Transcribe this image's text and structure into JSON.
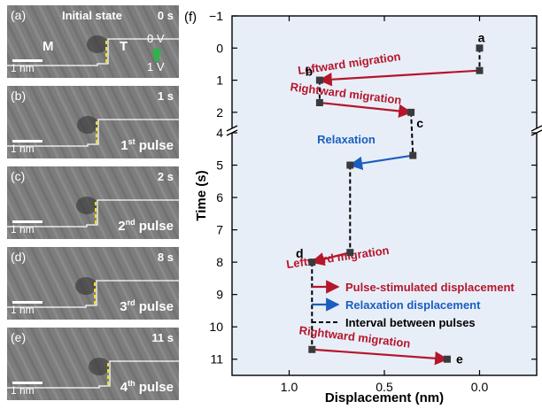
{
  "panels": [
    {
      "label": "(a)",
      "time": "0 s",
      "state": "Initial state",
      "pulse": null,
      "scale": "1 nm",
      "region_left": "M",
      "region_right": "T",
      "bias_top": "0 V",
      "bias_bottom": "1 V"
    },
    {
      "label": "(b)",
      "time": "1 s",
      "pulse": {
        "num": "1",
        "sup": "st",
        "word": "pulse"
      },
      "scale": "1 nm"
    },
    {
      "label": "(c)",
      "time": "2 s",
      "pulse": {
        "num": "2",
        "sup": "nd",
        "word": "pulse"
      },
      "scale": "1 nm"
    },
    {
      "label": "(d)",
      "time": "8 s",
      "pulse": {
        "num": "3",
        "sup": "rd",
        "word": "pulse"
      },
      "scale": "1 nm"
    },
    {
      "label": "(e)",
      "time": "11 s",
      "pulse": {
        "num": "4",
        "sup": "th",
        "word": "pulse"
      },
      "scale": "1 nm"
    }
  ],
  "colors": {
    "pulse": "#b5162b",
    "relax": "#1a5fbf",
    "interval": "#000000",
    "plot_bg": "#e8eef8",
    "marker": "#3a3a3a",
    "arrow_bias": "#2db34a",
    "dashed_edge": "#f2e01a"
  },
  "chart_data": {
    "panel_label": "(f)",
    "type": "scatter",
    "xlabel": "Displacement (nm)",
    "ylabel": "Time (s)",
    "x_reversed": true,
    "xlim": [
      1.3,
      -0.3
    ],
    "x_ticks": [
      1.0,
      0.5,
      0.0
    ],
    "x_tick_labels": [
      "1.0",
      "0.5",
      "0.0"
    ],
    "y_axis_break": {
      "between": 2.5,
      "and": 4
    },
    "y_upper_segment": {
      "range": [
        -1,
        2.5
      ],
      "ticks": [
        -1,
        0,
        1,
        2
      ],
      "tick_labels": [
        "−1",
        "0",
        "1",
        "2"
      ]
    },
    "y_lower_segment": {
      "range": [
        4,
        11.5
      ],
      "ticks": [
        4,
        5,
        6,
        7,
        8,
        9,
        10,
        11
      ],
      "tick_labels": [
        "4",
        "5",
        "6",
        "7",
        "8",
        "9",
        "10",
        "11"
      ]
    },
    "points": [
      {
        "x": 0.0,
        "y": 0.0
      },
      {
        "x": 0.0,
        "y": 0.7
      },
      {
        "x": 0.84,
        "y": 1.0
      },
      {
        "x": 0.84,
        "y": 1.7
      },
      {
        "x": 0.36,
        "y": 2.0
      },
      {
        "x": 0.35,
        "y": 4.7
      },
      {
        "x": 0.68,
        "y": 5.0
      },
      {
        "x": 0.68,
        "y": 7.7
      },
      {
        "x": 0.88,
        "y": 8.0
      },
      {
        "x": 0.88,
        "y": 10.7
      },
      {
        "x": 0.17,
        "y": 11.0
      }
    ],
    "point_labels": [
      {
        "text": "a",
        "x": 0.0,
        "y": 0.0
      },
      {
        "text": "b",
        "x": 0.84,
        "y": 1.0
      },
      {
        "text": "c",
        "x": 0.36,
        "y": 2.0
      },
      {
        "text": "d",
        "x": 0.88,
        "y": 8.0
      },
      {
        "text": "e",
        "x": 0.17,
        "y": 11.0
      }
    ],
    "transitions": [
      {
        "kind": "interval",
        "from": [
          0.0,
          0.0
        ],
        "to": [
          0.0,
          0.7
        ]
      },
      {
        "kind": "pulse",
        "from": [
          0.0,
          0.7
        ],
        "to": [
          0.84,
          1.0
        ],
        "label": "Leftward migration"
      },
      {
        "kind": "interval",
        "from": [
          0.84,
          1.0
        ],
        "to": [
          0.84,
          1.7
        ]
      },
      {
        "kind": "pulse",
        "from": [
          0.84,
          1.7
        ],
        "to": [
          0.36,
          2.0
        ],
        "label": "Rightward migration"
      },
      {
        "kind": "interval",
        "from": [
          0.36,
          2.0
        ],
        "to": [
          0.35,
          4.7
        ]
      },
      {
        "kind": "relax",
        "from": [
          0.35,
          4.7
        ],
        "to": [
          0.68,
          5.0
        ],
        "label": "Relaxation"
      },
      {
        "kind": "interval",
        "from": [
          0.68,
          5.0
        ],
        "to": [
          0.68,
          7.7
        ]
      },
      {
        "kind": "pulse",
        "from": [
          0.68,
          7.7
        ],
        "to": [
          0.88,
          8.0
        ],
        "label": "Leftward migration"
      },
      {
        "kind": "interval",
        "from": [
          0.88,
          8.0
        ],
        "to": [
          0.88,
          10.7
        ]
      },
      {
        "kind": "pulse",
        "from": [
          0.88,
          10.7
        ],
        "to": [
          0.17,
          11.0
        ],
        "label": "Rightward migration"
      }
    ],
    "legend": {
      "placement": "lower-right",
      "entries": [
        {
          "kind": "pulse",
          "label": "Pulse-stimulated displacement"
        },
        {
          "kind": "relax",
          "label": "Relaxation displacement"
        },
        {
          "kind": "interval",
          "label": "Interval between pulses"
        }
      ]
    }
  }
}
